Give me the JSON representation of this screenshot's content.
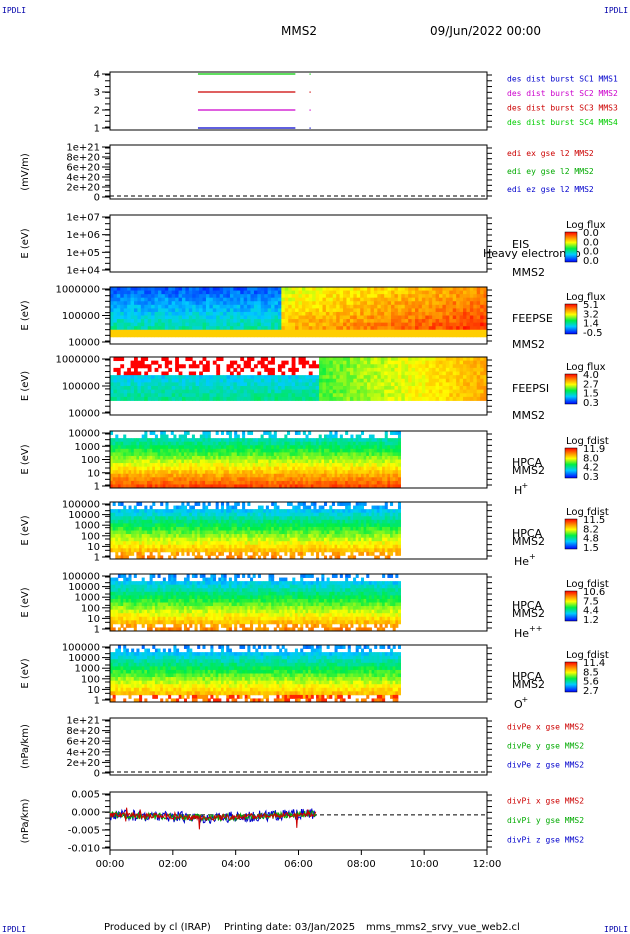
{
  "header": {
    "corner_tl": "IPDLI",
    "corner_tr": "IPDLI",
    "corner_bl": "IPDLI",
    "corner_br": "IPDLI",
    "spacecraft": "MMS2",
    "date": "09/Jun/2022 00:00"
  },
  "footer": {
    "produced_by": "Produced by cl (IRAP)",
    "printing_date": "Printing date: 03/Jan/2025",
    "file_name": "mms_mms2_srvy_vue_web2.cl"
  },
  "chart_data": {
    "type": "multi-panel time series",
    "x": {
      "ticks": [
        "00:00",
        "02:00",
        "04:00",
        "06:00",
        "08:00",
        "10:00",
        "12:00"
      ],
      "range_hours": [
        0,
        12
      ]
    },
    "panels": [
      {
        "id": "burst",
        "type": "line",
        "yticks": [
          "1",
          "2",
          "3",
          "4"
        ],
        "legend": [
          {
            "label": "des dist burst SC1 MMS1",
            "color": "#0000cc"
          },
          {
            "label": "des dist burst SC2 MMS2",
            "color": "#cc00cc"
          },
          {
            "label": "des dist burst SC3 MMS3",
            "color": "#cc0000"
          },
          {
            "label": "des dist burst SC4 MMS4",
            "color": "#00cc00"
          }
        ],
        "series": [
          {
            "level": 4,
            "color": "#00cc00",
            "start_h": 2.8,
            "end_h": 5.9
          },
          {
            "level": 3,
            "color": "#cc0000",
            "start_h": 2.8,
            "end_h": 5.9
          },
          {
            "level": 2,
            "color": "#cc00cc",
            "start_h": 2.8,
            "end_h": 5.9
          },
          {
            "level": 1,
            "color": "#0000cc",
            "start_h": 2.8,
            "end_h": 5.9
          }
        ]
      },
      {
        "id": "edi",
        "type": "line",
        "ylabel": "(mV/m)",
        "yticks": [
          "0",
          "2e+20",
          "4e+20",
          "6e+20",
          "8e+20",
          "1e+21"
        ],
        "legend": [
          {
            "label": "edi ex gse l2 MMS2",
            "color": "#cc0000"
          },
          {
            "label": "edi ey gse l2 MMS2",
            "color": "#00aa00"
          },
          {
            "label": "edi ez gse l2 MMS2",
            "color": "#0000cc"
          }
        ]
      },
      {
        "id": "eis",
        "type": "heatmap",
        "ylabel": "E (eV)",
        "yticks": [
          "1e+04",
          "1e+05",
          "1e+06",
          "1e+07"
        ],
        "instrument": "EIS",
        "mms": "MMS2",
        "colorbar_title": "Log flux",
        "colorbar_ticks": [
          "0.0",
          "0.0",
          "0.0",
          "0.0"
        ],
        "overlay": "Heavy electron to"
      },
      {
        "id": "feepse",
        "type": "heatmap",
        "ylabel": "E (eV)",
        "yticks": [
          "10000",
          "100000",
          "1000000"
        ],
        "instrument": "FEEPSE",
        "mms": "MMS2",
        "colorbar_title": "Log flux",
        "colorbar_ticks": [
          "5.1",
          "3.2",
          "1.4",
          "-0.5"
        ],
        "end_h": 12
      },
      {
        "id": "feepsi",
        "type": "heatmap",
        "ylabel": "E (eV)",
        "yticks": [
          "10000",
          "100000",
          "1000000"
        ],
        "instrument": "FEEPSI",
        "mms": "MMS2",
        "colorbar_title": "Log flux",
        "colorbar_ticks": [
          "4.0",
          "2.7",
          "1.5",
          "0.3"
        ],
        "end_h": 12
      },
      {
        "id": "hpca_h",
        "type": "heatmap",
        "ylabel": "E (eV)",
        "yticks": [
          "1",
          "10",
          "100",
          "1000",
          "10000"
        ],
        "instrument": "HPCA",
        "mms": "MMS2",
        "species": "H",
        "charge": "+",
        "colorbar_title": "Log fdist",
        "colorbar_ticks": [
          "11.9",
          "8.0",
          "4.2",
          "0.3"
        ],
        "end_h": 9.25
      },
      {
        "id": "hpca_he1",
        "type": "heatmap",
        "ylabel": "E (eV)",
        "yticks": [
          "1",
          "10",
          "100",
          "1000",
          "10000",
          "100000"
        ],
        "instrument": "HPCA",
        "mms": "MMS2",
        "species": "He",
        "charge": "+",
        "colorbar_title": "Log fdist",
        "colorbar_ticks": [
          "11.5",
          "8.2",
          "4.8",
          "1.5"
        ],
        "end_h": 9.25
      },
      {
        "id": "hpca_he2",
        "type": "heatmap",
        "ylabel": "E (eV)",
        "yticks": [
          "1",
          "10",
          "100",
          "1000",
          "10000",
          "100000"
        ],
        "instrument": "HPCA",
        "mms": "MMS2",
        "species": "He",
        "charge": "++",
        "colorbar_title": "Log fdist",
        "colorbar_ticks": [
          "10.6",
          "7.5",
          "4.4",
          "1.2"
        ],
        "end_h": 9.25
      },
      {
        "id": "hpca_o",
        "type": "heatmap",
        "ylabel": "E (eV)",
        "yticks": [
          "1",
          "10",
          "100",
          "1000",
          "10000",
          "100000"
        ],
        "instrument": "HPCA",
        "mms": "MMS2",
        "species": "O",
        "charge": "+",
        "colorbar_title": "Log fdist",
        "colorbar_ticks": [
          "11.4",
          "8.5",
          "5.6",
          "2.7"
        ],
        "end_h": 9.25
      },
      {
        "id": "divpe",
        "type": "line",
        "ylabel": "(nPa/km)",
        "yticks": [
          "0",
          "2e+20",
          "4e+20",
          "6e+20",
          "8e+20",
          "1e+21"
        ],
        "legend": [
          {
            "label": "divPe x gse MMS2",
            "color": "#cc0000"
          },
          {
            "label": "divPe y gse MMS2",
            "color": "#00aa00"
          },
          {
            "label": "divPe z gse MMS2",
            "color": "#0000cc"
          }
        ]
      },
      {
        "id": "divpi",
        "type": "line",
        "ylabel": "(nPa/km)",
        "yticks": [
          "-0.010",
          "-0.005",
          "0.000",
          "0.005"
        ],
        "ylim": [
          -0.0115,
          0.0075
        ],
        "legend": [
          {
            "label": "divPi x gse MMS2",
            "color": "#cc0000"
          },
          {
            "label": "divPi y gse MMS2",
            "color": "#00aa00"
          },
          {
            "label": "divPi z gse MMS2",
            "color": "#0000cc"
          }
        ],
        "end_h": 6.55
      }
    ]
  }
}
